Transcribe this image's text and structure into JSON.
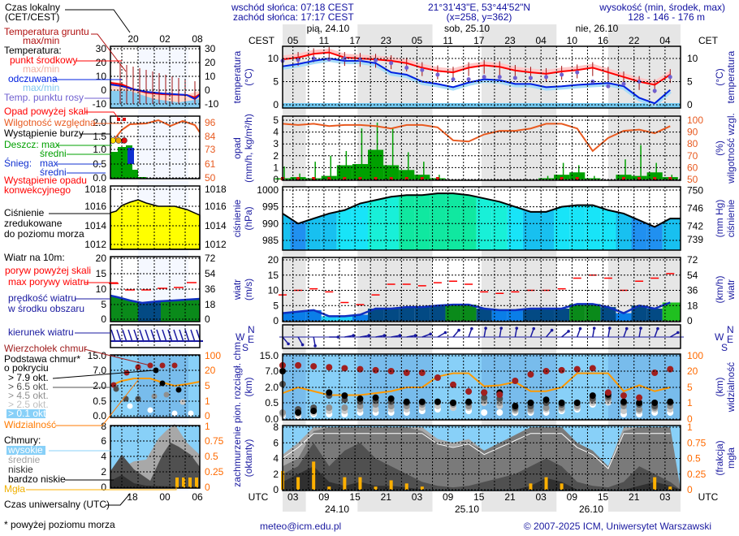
{
  "header": {
    "sunrise": "wschód słońca: 07:18 CEST",
    "sunset": "zachód słońca: 17:17 CEST",
    "coords": "21°31'43\"E, 53°44'52\"N",
    "grid": "(x=258,  y=362)",
    "elev_title": "wysokość (min, środek, max)",
    "elev_values": "128 - 146 - 176 m"
  },
  "time_axis": {
    "tz_left": "CEST",
    "tz_right": "CET",
    "local_ticks": [
      "05",
      "11",
      "17",
      "23",
      "05",
      "11",
      "17",
      "23",
      "04",
      "10",
      "16",
      "22",
      "04"
    ],
    "days": [
      "pią, 24.10",
      "sob, 25.10",
      "nie, 26.10"
    ],
    "utc_label": "UTC",
    "utc_ticks": [
      "03",
      "09",
      "15",
      "21",
      "03",
      "09",
      "15",
      "21",
      "03",
      "09",
      "15",
      "21",
      "03"
    ],
    "utc_dates": [
      "24.10",
      "25.10",
      "26.10"
    ]
  },
  "compass": {
    "n": "N",
    "w": "W",
    "e": "E",
    "s": "S"
  },
  "legend": {
    "local_time": [
      "Czas lokalny",
      "(CET/CEST)"
    ],
    "ground_temp": [
      "Temperatura gruntu",
      "max/min"
    ],
    "temperature": "Temperatura:",
    "midpoint": "punkt środkowy",
    "midpoint_range": "max/min",
    "feels_like": "odczuwana",
    "feels_like_range": "max/min",
    "dew_point": "Temp. punktu rosy",
    "precip_over_scale": "Opad powyżej skali",
    "humidity": "Wilgotność względna",
    "storm": "Wystąpienie burzy",
    "rain": "Deszcz: max",
    "rain_avg": "średni",
    "snow": "Śnieg:",
    "snow_max": "max",
    "snow_avg": "średni",
    "convective": [
      "Wystąpienie opadu",
      "konwekcyjnego"
    ],
    "pressure": [
      "Ciśnienie",
      "zredukowane",
      "do poziomu morza"
    ],
    "wind_title": "Wiatr na 10m:",
    "gust_over_scale": "poryw powyżej skali",
    "max_gust": "max porywy wiatru",
    "wind_speed": [
      "prędkość wiatru",
      "w środku obszaru"
    ],
    "wind_dir": "kierunek wiatru",
    "cloud_top": "Wierzchołek chmur",
    "cloud_base": [
      "Podstawa chmur*",
      "o pokryciu"
    ],
    "okt": [
      "> 7.9 okt.",
      "> 6.5 okt.",
      "> 4.5 okt.",
      "> 2.5 okt.",
      "> 0.1 okt."
    ],
    "visibility": "Widzialność",
    "clouds": "Chmury:",
    "cloud_layers": [
      "wysokie",
      "średnie",
      "niskie",
      "bardzo niskie"
    ],
    "fog": "Mgła",
    "utc_time": "Czas uniwersalny (UTC)",
    "footnote": "* powyżej poziomu morza",
    "mini_ticks": {
      "time_top": [
        "20",
        "02",
        "08"
      ],
      "time_bottom": [
        "18",
        "00",
        "06"
      ],
      "temp": [
        "30",
        "20",
        "10",
        "0",
        "-10"
      ],
      "prec_left": [
        "2.0",
        "1.5",
        "1.0",
        "0.5",
        "0.0"
      ],
      "prec_right": [
        "96",
        "84",
        "73",
        "61",
        "50"
      ],
      "pres": [
        "1018",
        "1016",
        "1014",
        "1012"
      ],
      "wind_left": [
        "20",
        "15",
        "10",
        "5",
        "0"
      ],
      "wind_right": [
        "72",
        "54",
        "36",
        "18",
        "0"
      ],
      "base_left": [
        "15.0",
        "7.0",
        "2.0",
        "0.5",
        "0.0"
      ],
      "base_right": [
        "100",
        "20",
        "5",
        "1",
        "0"
      ],
      "cov_left": [
        "8",
        "6",
        "4",
        "2",
        "0"
      ],
      "cov_right": [
        "1",
        "0.75",
        "0.5",
        "0.25",
        "0"
      ]
    }
  },
  "footer": {
    "email": "meteo@icm.edu.pl",
    "copyright": "© 2007-2025 ICM, Uniwersytet Warszawski"
  },
  "colors": {
    "temperature": "#ff0000",
    "feels_like": "#0020e0",
    "dew_point": "#7060d0",
    "humidity": "#e85a20",
    "rain": "#00a000",
    "gust": "#ff0000",
    "pressure_line": "#000000",
    "visibility": "#ff9900",
    "fog": "#ffb000",
    "night": "#e6e6e6",
    "sky": "#88d0f8"
  },
  "chart_data": [
    {
      "type": "line",
      "panel": "temperature",
      "x_unit": "UTC",
      "x": [
        "24.10 01",
        "24.10 04",
        "24.10 07",
        "24.10 10",
        "24.10 13",
        "24.10 16",
        "24.10 19",
        "24.10 22",
        "25.10 01",
        "25.10 04",
        "25.10 07",
        "25.10 10",
        "25.10 13",
        "25.10 16",
        "25.10 19",
        "25.10 22",
        "26.10 01",
        "26.10 04",
        "26.10 07",
        "26.10 10",
        "26.10 13",
        "26.10 16",
        "26.10 19",
        "26.10 22",
        "27.10 01",
        "27.10 04"
      ],
      "left_axis": {
        "title": "temperatura",
        "unit": "(°C)",
        "ticks": [
          "10",
          "5",
          "0"
        ]
      },
      "right_axis": {
        "title": "temperatura",
        "unit": "(°C)",
        "ticks": [
          "10",
          "5",
          "0"
        ]
      },
      "series": [
        {
          "name": "punkt środkowy",
          "values": [
            9.8,
            10.2,
            11.0,
            11.3,
            10.2,
            10.0,
            9.8,
            9.5,
            9.0,
            8.0,
            7.3,
            7.0,
            8.0,
            8.5,
            8.2,
            7.4,
            7.0,
            6.7,
            7.2,
            7.5,
            8.0,
            7.0,
            6.0,
            5.0,
            4.3,
            6.5
          ]
        },
        {
          "name": "odczuwana",
          "values": [
            8.3,
            8.8,
            9.5,
            10.0,
            9.5,
            9.5,
            9.0,
            7.0,
            6.5,
            5.0,
            4.5,
            3.8,
            4.8,
            5.5,
            5.3,
            4.5,
            4.5,
            3.8,
            4.0,
            4.3,
            4.5,
            4.7,
            4.0,
            1.5,
            0.3,
            3.2
          ]
        },
        {
          "name": "Temp. punktu rosy",
          "values": [
            9.5,
            9.7,
            10.0,
            9.8,
            10.0,
            9.8,
            9.6,
            9.0,
            8.0,
            7.5,
            6.5,
            5.5,
            5.5,
            6.0,
            6.0,
            5.8,
            5.8,
            6.0,
            6.5,
            7.0,
            5.0,
            4.0,
            4.5,
            5.0,
            3.0,
            6.0
          ]
        }
      ]
    },
    {
      "type": "bar",
      "panel": "precipitation",
      "left_axis": {
        "title": "opad",
        "unit": "(mm/h, kg/m²/h)",
        "ticks": [
          "5",
          "4",
          "3",
          "2",
          "1",
          "0"
        ]
      },
      "right_axis": {
        "title": "wilgotność wzgl.",
        "unit": "(%)",
        "ticks": [
          "100",
          "90",
          "80",
          "70",
          "60",
          "50"
        ]
      },
      "series": [
        {
          "name": "Deszcz: średni",
          "values": [
            0.1,
            0.2,
            0.1,
            0.3,
            1.2,
            1.3,
            2.5,
            1.2,
            0.8,
            0.4,
            0.1,
            0,
            0,
            0,
            0,
            0,
            0,
            0.1,
            0.4,
            0.6,
            0.1,
            0,
            0.4,
            0.3,
            0.6,
            0.2
          ]
        },
        {
          "name": "Deszcz: max",
          "values": [
            1.1,
            0.5,
            1.5,
            2.0,
            2.4,
            4.3,
            4.8,
            4.3,
            2.3,
            1.5,
            0.4,
            0,
            0,
            0,
            0,
            0,
            0,
            0.3,
            1.4,
            1.2,
            0.3,
            0,
            1.7,
            2.9,
            1.4,
            0.4
          ]
        },
        {
          "name": "Wilgotność względna",
          "values": [
            97,
            96,
            97,
            95,
            96,
            96,
            95,
            93,
            96,
            96,
            94,
            83,
            82,
            88,
            91,
            91,
            93,
            97,
            97,
            93,
            74,
            85,
            91,
            92,
            89,
            95
          ]
        }
      ]
    },
    {
      "type": "area",
      "panel": "pressure",
      "left_axis": {
        "title": "ciśnienie",
        "unit": "(hPa)",
        "ticks": [
          "1000",
          "995",
          "990",
          "985"
        ]
      },
      "right_axis": {
        "title": "ciśnienie",
        "unit": "(mm Hg)",
        "ticks": [
          "750",
          "746",
          "742",
          "739"
        ]
      },
      "series": [
        {
          "name": "Ciśnienie",
          "values": [
            993,
            990,
            991.5,
            993,
            994,
            996,
            997,
            998,
            998.5,
            998.5,
            999,
            999,
            998.5,
            997.5,
            996.5,
            995,
            993.5,
            993.5,
            995,
            995.5,
            995.5,
            994,
            993,
            991,
            989,
            991.5
          ]
        }
      ]
    },
    {
      "type": "area",
      "panel": "wind",
      "left_axis": {
        "title": "wiatr",
        "unit": "(m/s)",
        "ticks": [
          "20",
          "15",
          "10",
          "5",
          "0"
        ]
      },
      "right_axis": {
        "title": "wiatr",
        "unit": "(km/h)",
        "ticks": [
          "72",
          "54",
          "36",
          "18",
          "0"
        ]
      },
      "series": [
        {
          "name": "prędkość wiatru",
          "values": [
            2.5,
            3,
            3.5,
            1.5,
            1.5,
            2,
            4,
            4,
            4.5,
            4.5,
            5,
            5.3,
            5.3,
            4,
            3.5,
            3.5,
            4,
            4,
            4,
            5.5,
            5.5,
            4.5,
            2.5,
            5,
            4,
            6
          ]
        },
        {
          "name": "max porywy wiatru",
          "values": [
            8.5,
            10,
            10.5,
            9.5,
            6,
            5.3,
            8.5,
            12,
            12,
            11.5,
            12.5,
            13,
            12,
            9.5,
            9,
            9.5,
            10,
            10,
            10.5,
            14,
            15,
            14,
            10,
            13,
            14,
            15.5
          ]
        },
        {
          "name": "kierunek wiatru",
          "unit": "deg",
          "values": [
            320,
            330,
            350,
            270,
            260,
            260,
            260,
            260,
            260,
            250,
            240,
            220,
            200,
            190,
            190,
            190,
            200,
            220,
            230,
            200,
            190,
            190,
            200,
            190,
            200,
            240
          ]
        }
      ]
    },
    {
      "type": "scatter",
      "panel": "clouds",
      "left_axis": {
        "title": "pion. rozciągł. chm.",
        "unit": "(km)",
        "ticks": [
          "15.0",
          "7.0",
          "2.0",
          "0.5",
          "0.0"
        ]
      },
      "right_axis": {
        "title": "widzialność",
        "unit": "(km)",
        "ticks": [
          "100",
          "20",
          "5",
          "1",
          "0"
        ]
      },
      "series": [
        {
          "name": "Wierzchołek chmur",
          "values": [
            10,
            10,
            9.5,
            9,
            8.5,
            8,
            7.5,
            7,
            6.5,
            6.5,
            5,
            2.8,
            1.6,
            1.5,
            1.3,
            4,
            6,
            7,
            7.5,
            8,
            8.5,
            1.5,
            1.2,
            1.0,
            6.5,
            8
          ]
        },
        {
          "name": "> 7.9 okt.",
          "values": [
            7,
            0.2,
            0.25,
            1.5,
            1.2,
            0.9,
            1,
            0.9,
            0.6,
            0.6,
            0.6,
            0.5,
            0.6,
            1.5,
            1.5,
            0.4,
            0.5,
            0.8,
            0.5,
            0.5,
            1.2,
            1.3,
            0.6,
            0.5,
            0.5,
            0.6
          ]
        },
        {
          "name": "> 6.5 okt.",
          "values": [
            3,
            0.3,
            0.35,
            1.2,
            0.8,
            0.6,
            0.7,
            0.6,
            0.5,
            0.55,
            0.6,
            0.5,
            0.5,
            1.0,
            0.9,
            0.35,
            0.4,
            0.5,
            0.45,
            0.5,
            0.9,
            1.1,
            0.5,
            0.45,
            0.4,
            0.5
          ]
        },
        {
          "name": "> 4.5 okt.",
          "values": [
            0.2,
            0.2,
            0.3,
            0.35,
            0.35,
            0.4,
            0.45,
            0.4,
            0.4,
            0.45,
            0.55,
            0.45,
            0.4,
            0.7,
            0.5,
            0.3,
            0.3,
            0.35,
            0.35,
            0.4,
            0.7,
            0.9,
            0.4,
            0.3,
            0.35,
            0.4
          ]
        },
        {
          "name": "> 2.5 okt.",
          "values": [
            0.15,
            0.15,
            0.2,
            0.25,
            0.25,
            0.3,
            0.3,
            0.3,
            0.3,
            0.35,
            0.4,
            0.35,
            0.35,
            0.5,
            0.4,
            0.25,
            0.25,
            0.3,
            0.3,
            0.35,
            0.5,
            0.6,
            0.25,
            0.25,
            0.3,
            0.3
          ]
        },
        {
          "name": "> 0.1 okt.",
          "values": [
            0.1,
            0.1,
            0.15,
            0.15,
            0.15,
            0.2,
            0.2,
            0.2,
            0.2,
            0.25,
            0.3,
            0.35,
            0.25,
            0.2,
            0.2,
            0.2,
            0.2,
            0.2,
            0.25,
            0.3,
            0.45,
            0.55,
            0.15,
            0.15,
            0.2,
            0.2
          ]
        },
        {
          "name": "Widzialność",
          "values": [
            3.5,
            5,
            4,
            3,
            3,
            3,
            3.5,
            4,
            5,
            5,
            15,
            18,
            18,
            6,
            7,
            10,
            4,
            4,
            5,
            18,
            18,
            18,
            4,
            7,
            4,
            5
          ]
        }
      ]
    },
    {
      "type": "area",
      "panel": "cloud_cover",
      "left_axis": {
        "title": "zachmurzenie",
        "unit": "(oktanty)",
        "ticks": [
          "8",
          "6",
          "4",
          "2",
          "0"
        ]
      },
      "right_axis": {
        "title": "mgła",
        "unit": "(frakcja)",
        "ticks": [
          "1",
          "0.75",
          "0.5",
          "0.25",
          "0"
        ]
      },
      "series": [
        {
          "name": "wysokie",
          "values": [
            4.5,
            6,
            8,
            8,
            8,
            8,
            8,
            8,
            8,
            8,
            6.5,
            6,
            6.5,
            5,
            6,
            7,
            8,
            8,
            8,
            6,
            5,
            3,
            8,
            8,
            8,
            8
          ]
        },
        {
          "name": "średnie",
          "values": [
            3,
            4,
            7.5,
            8,
            8,
            8,
            8,
            8,
            8,
            7.5,
            6,
            5.5,
            6,
            5,
            6,
            7,
            8,
            8,
            8,
            6,
            5,
            3,
            7.5,
            8,
            8,
            8
          ]
        },
        {
          "name": "niskie",
          "values": [
            2,
            3,
            6,
            3,
            5,
            6,
            4,
            3,
            2,
            1,
            0.5,
            0.3,
            0.5,
            1,
            1.5,
            2,
            3,
            4,
            3,
            1,
            0.5,
            0.3,
            1,
            3,
            2,
            1
          ]
        },
        {
          "name": "bardzo niskie",
          "values": [
            1,
            2,
            3,
            1,
            0.5,
            1,
            0.5,
            0.5,
            0.3,
            0,
            0,
            0,
            0,
            0,
            0,
            0,
            0.5,
            1.5,
            1,
            0,
            0,
            0,
            0,
            0.5,
            1,
            0.5
          ]
        },
        {
          "name": "Mgła",
          "values": [
            0.3,
            0.2,
            0.45,
            0.05,
            0.2,
            0.2,
            0.05,
            0.15,
            0.1,
            0.05,
            0,
            0,
            0,
            0,
            0,
            0,
            0.1,
            0.2,
            0.1,
            0,
            0,
            0,
            0,
            0,
            0.2,
            0.05
          ]
        }
      ]
    }
  ]
}
